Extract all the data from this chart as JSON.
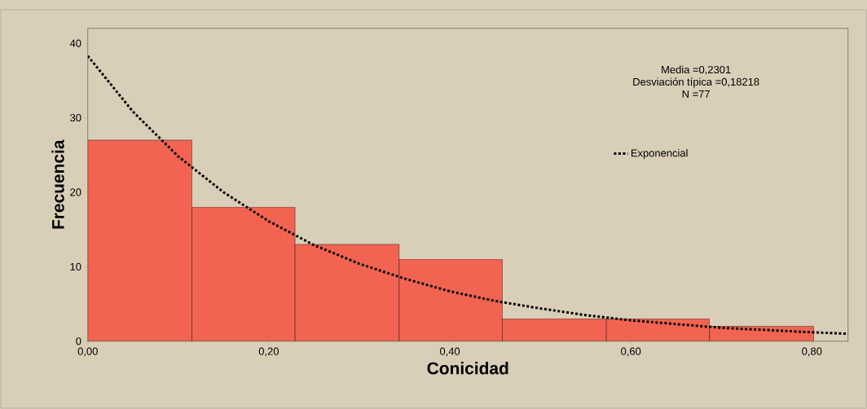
{
  "chart_data": {
    "type": "histogram",
    "xlabel": "Conicidad",
    "ylabel": "Frecuencia",
    "bins": [
      0,
      0.115,
      0.229,
      0.344,
      0.458,
      0.573,
      0.687,
      0.802
    ],
    "values": [
      27,
      18,
      13,
      11,
      3,
      3,
      2
    ],
    "color": "#f26451",
    "series": [
      {
        "type": "line",
        "name": "Exponencial",
        "color": "#000000",
        "line_style": "dotted",
        "x": [
          0,
          0.05,
          0.1,
          0.15,
          0.2,
          0.25,
          0.3,
          0.35,
          0.4,
          0.45,
          0.5,
          0.55,
          0.6,
          0.65,
          0.7,
          0.75,
          0.8,
          0.84
        ],
        "values": [
          38.3,
          30.8,
          24.8,
          20.0,
          16.1,
          12.9,
          10.4,
          8.4,
          6.7,
          5.4,
          4.4,
          3.5,
          2.8,
          2.3,
          1.8,
          1.5,
          1.2,
          1.0
        ]
      }
    ],
    "annotations": [
      "Media =0,2301",
      "Desviación típica =0,18218",
      "N =77"
    ],
    "xlim": [
      0,
      0.84
    ],
    "ylim": [
      0,
      42
    ],
    "xticks": [
      {
        "value": 0,
        "label": "0,00"
      },
      {
        "value": 0.2,
        "label": "0,20"
      },
      {
        "value": 0.4,
        "label": "0,40"
      },
      {
        "value": 0.6,
        "label": "0,60"
      },
      {
        "value": 0.8,
        "label": "0,80"
      }
    ],
    "yticks": [
      0,
      10,
      20,
      30,
      40
    ],
    "legend": "right",
    "grid": false
  }
}
